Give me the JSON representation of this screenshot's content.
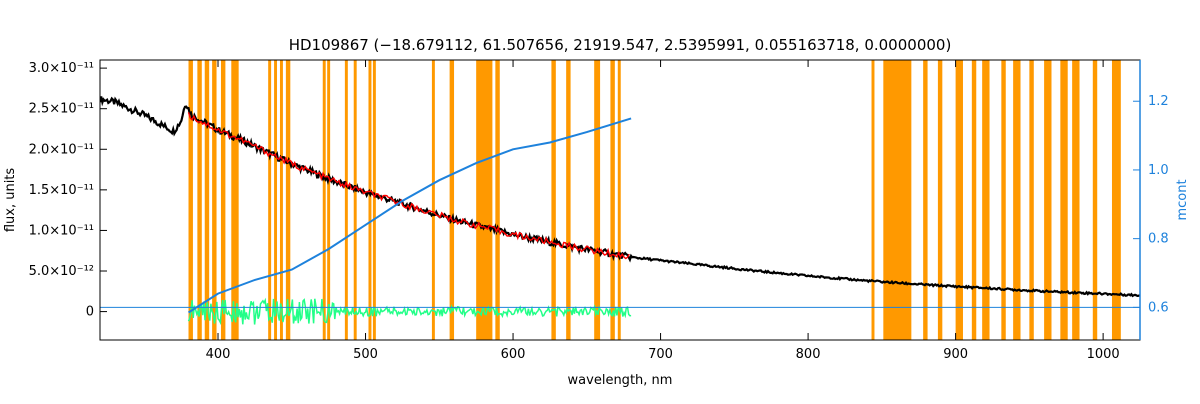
{
  "chart_data": {
    "type": "line",
    "title": "HD109867   (−18.679112, 61.507656, 21919.547, 2.5395991, 0.055163718, 0.0000000)",
    "xlabel": "wavelength, nm",
    "ylabel": "flux, units",
    "y2label": "mcont",
    "xlim": [
      320,
      1025
    ],
    "ylim": [
      -3.5e-12,
      3.1e-11
    ],
    "y2lim": [
      0.505,
      1.32
    ],
    "grid": false,
    "x_ticks": [
      400,
      500,
      600,
      700,
      800,
      900,
      1000
    ],
    "x_tick_labels": [
      "400",
      "500",
      "600",
      "700",
      "800",
      "900",
      "1000"
    ],
    "y_ticks": [
      0,
      5e-12,
      1e-11,
      1.5e-11,
      2e-11,
      2.5e-11,
      3e-11
    ],
    "y_tick_labels": [
      "0",
      "5.0×10⁻¹²",
      "1.0×10⁻¹¹",
      "1.5×10⁻¹¹",
      "2.0×10⁻¹¹",
      "2.5×10⁻¹¹",
      "3.0×10⁻¹¹"
    ],
    "y2_ticks": [
      0.6,
      0.8,
      1.0,
      1.2
    ],
    "y2_tick_labels": [
      "0.6",
      "0.8",
      "1.0",
      "1.2"
    ],
    "masked_bands": [
      [
        380,
        383
      ],
      [
        386,
        389
      ],
      [
        391,
        394
      ],
      [
        396,
        399
      ],
      [
        402,
        405
      ],
      [
        409,
        414
      ],
      [
        434,
        436
      ],
      [
        438,
        440
      ],
      [
        442,
        444
      ],
      [
        446,
        449
      ],
      [
        471,
        473
      ],
      [
        474,
        476
      ],
      [
        486,
        488
      ],
      [
        492,
        494
      ],
      [
        502,
        504
      ],
      [
        505,
        507
      ],
      [
        545,
        547
      ],
      [
        557,
        560
      ],
      [
        575,
        586
      ],
      [
        588,
        591
      ],
      [
        626,
        629
      ],
      [
        636,
        639
      ],
      [
        655,
        659
      ],
      [
        666,
        669
      ],
      [
        671,
        673
      ],
      [
        843,
        845
      ],
      [
        851,
        870
      ],
      [
        878,
        881
      ],
      [
        888,
        891
      ],
      [
        900,
        905
      ],
      [
        911,
        914
      ],
      [
        918,
        923
      ],
      [
        931,
        934
      ],
      [
        939,
        944
      ],
      [
        950,
        953
      ],
      [
        960,
        965
      ],
      [
        971,
        976
      ],
      [
        979,
        984
      ],
      [
        993,
        996
      ],
      [
        1006,
        1012
      ]
    ],
    "series": [
      {
        "role": "observed",
        "color": "#000000",
        "x": [
          320,
          330,
          340,
          350,
          360,
          370,
          375,
          378,
          382,
          390,
          400,
          420,
          450,
          480,
          500,
          530,
          560,
          600,
          640,
          680,
          720,
          760,
          800,
          840,
          880,
          920,
          960,
          1000,
          1025
        ],
        "y": [
          2.62e-11,
          2.58e-11,
          2.5e-11,
          2.42e-11,
          2.32e-11,
          2.22e-11,
          2.35e-11,
          2.58e-11,
          2.42e-11,
          2.34e-11,
          2.24e-11,
          2.08e-11,
          1.82e-11,
          1.6e-11,
          1.47e-11,
          1.3e-11,
          1.13e-11,
          9.5e-12,
          8e-12,
          6.7e-12,
          5.9e-12,
          5.1e-12,
          4.4e-12,
          3.8e-12,
          3.3e-12,
          2.9e-12,
          2.5e-12,
          2.2e-12,
          2e-12
        ]
      },
      {
        "role": "model",
        "color": "#ff0000",
        "x": [
          380,
          400,
          420,
          450,
          480,
          500,
          530,
          560,
          600,
          640,
          680
        ],
        "y": [
          2.42e-11,
          2.24e-11,
          2.08e-11,
          1.82e-11,
          1.6e-11,
          1.47e-11,
          1.3e-11,
          1.13e-11,
          9.5e-12,
          8e-12,
          6.7e-12
        ]
      },
      {
        "role": "residuals",
        "color": "#22ff88",
        "x": [
          380,
          680
        ],
        "y": [
          0,
          0
        ]
      },
      {
        "role": "mcont",
        "axis": "right",
        "color": "#1e82dc",
        "x": [
          380,
          400,
          425,
          450,
          475,
          500,
          525,
          550,
          575,
          600,
          625,
          650,
          680
        ],
        "y": [
          0.585,
          0.64,
          0.68,
          0.71,
          0.77,
          0.84,
          0.91,
          0.97,
          1.02,
          1.06,
          1.08,
          1.11,
          1.15
        ]
      },
      {
        "role": "mcont-baseline",
        "axis": "right",
        "color": "#1e82dc",
        "x": [
          320,
          1025
        ],
        "y": [
          0.6,
          0.6
        ]
      }
    ]
  },
  "colors": {
    "masked": "#ff9900",
    "observed": "#000000",
    "model": "#ff0000",
    "residuals": "#22ff88",
    "mcont": "#1e82dc"
  }
}
